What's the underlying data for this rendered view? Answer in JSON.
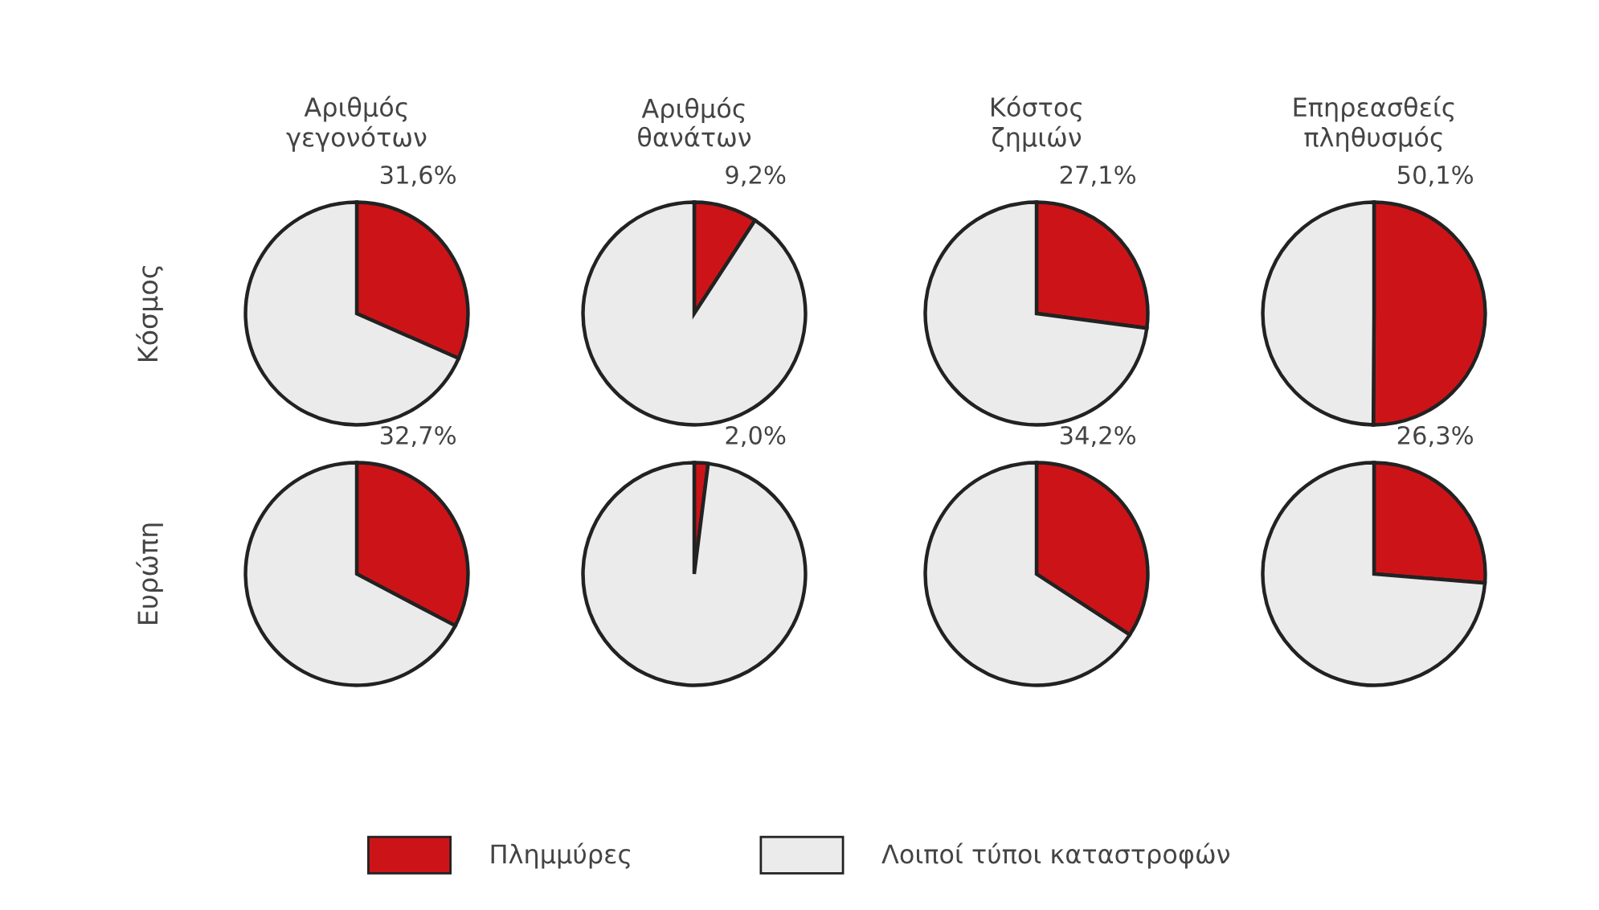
{
  "chart_data": [
    {
      "type": "pie",
      "title": "Αριθμός\nγεγονότων",
      "ylabel": "Κόσμος",
      "categories": [
        "Πλημμύρες",
        "Λοιποί τύποι καταστροφών"
      ],
      "values": [
        31.6,
        68.4
      ],
      "colors": [
        "#cc1418",
        "#ebebeb"
      ],
      "value_labels": [
        "31,6%",
        null
      ],
      "legend": "bottom"
    },
    {
      "type": "pie",
      "title": "Αριθμός\nθανάτων",
      "categories": [
        null,
        null
      ],
      "values": [
        9.2,
        90.8
      ],
      "colors": [
        "#cc1418",
        "#ebebeb"
      ],
      "value_labels": [
        "9,2%",
        null
      ]
    },
    {
      "type": "pie",
      "title": "Κόστος\nζημιών",
      "categories": [
        null,
        null
      ],
      "values": [
        27.1,
        72.9
      ],
      "colors": [
        "#cc1418",
        "#ebebeb"
      ],
      "value_labels": [
        "27,1%",
        null
      ]
    },
    {
      "type": "pie",
      "title": "Επηρεασθείς\nπληθυσμός",
      "categories": [
        null,
        null
      ],
      "values": [
        50.1,
        49.9
      ],
      "colors": [
        "#cc1418",
        "#ebebeb"
      ],
      "value_labels": [
        "50,1%",
        null
      ]
    },
    {
      "type": "pie",
      "ylabel": "Ευρώπη",
      "categories": [
        null,
        null
      ],
      "values": [
        32.7,
        67.3
      ],
      "colors": [
        "#cc1418",
        "#ebebeb"
      ],
      "value_labels": [
        "32,7%",
        null
      ]
    },
    {
      "type": "pie",
      "categories": [
        null,
        null
      ],
      "values": [
        2.0,
        98.0
      ],
      "colors": [
        "#cc1418",
        "#ebebeb"
      ],
      "value_labels": [
        "2,0%",
        null
      ]
    },
    {
      "type": "pie",
      "categories": [
        null,
        null
      ],
      "values": [
        34.2,
        65.8
      ],
      "colors": [
        "#cc1418",
        "#ebebeb"
      ],
      "value_labels": [
        "34,2%",
        null
      ]
    },
    {
      "type": "pie",
      "categories": [
        null,
        null
      ],
      "values": [
        26.3,
        73.7
      ],
      "colors": [
        "#cc1418",
        "#ebebeb"
      ],
      "value_labels": [
        "26,3%",
        null
      ]
    }
  ]
}
